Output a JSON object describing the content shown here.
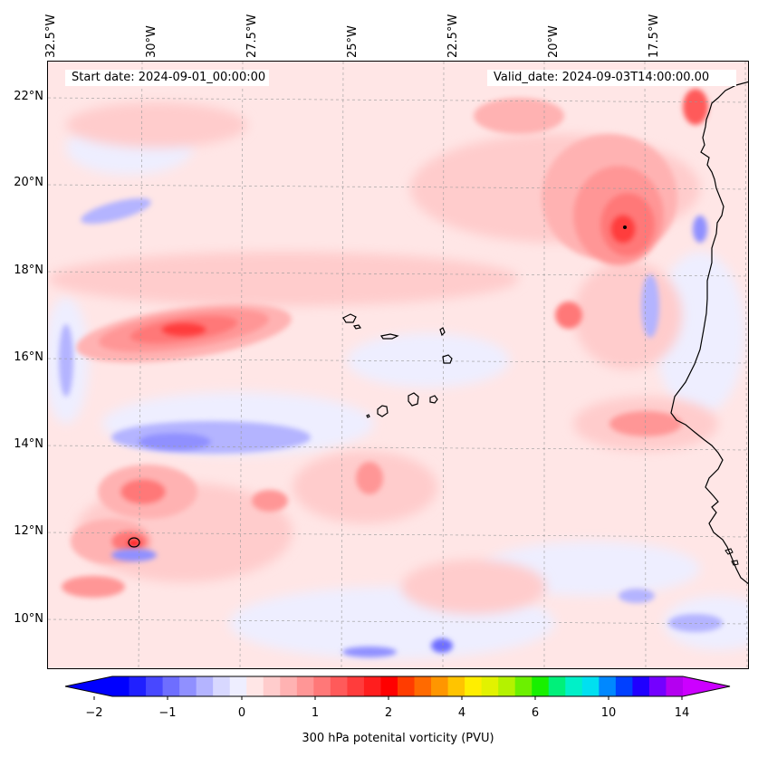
{
  "map": {
    "start_date": "Start date: 2024-09-01_00:00:00",
    "valid_date": "Valid_date: 2024-09-03T14:00:00.00",
    "longitude_labels": [
      "32.5°W",
      "30°W",
      "27.5°W",
      "25°W",
      "22.5°W",
      "20°W",
      "17.5°W"
    ],
    "latitude_labels": [
      "22°N",
      "20°N",
      "18°N",
      "16°N",
      "14°N",
      "12°N",
      "10°N"
    ],
    "extent": {
      "lon_min": -33.0,
      "lon_max": -15.8,
      "lat_min": 8.9,
      "lat_max": 22.8
    },
    "features": [
      "Cape Verde islands",
      "West African coastline"
    ],
    "gridlines": true
  },
  "colorbar": {
    "label": "300 hPa potenital vorticity (PVU)",
    "tick_labels": [
      "−2",
      "−1",
      "0",
      "1",
      "2",
      "4",
      "6",
      "10",
      "14"
    ],
    "extend": "both",
    "colors": [
      "#0000ff",
      "#2020ff",
      "#4848ff",
      "#6e6eff",
      "#9090ff",
      "#b4b4ff",
      "#d8d8ff",
      "#eeeeff",
      "#ffe6e6",
      "#ffcccc",
      "#ffb2b2",
      "#ff9696",
      "#ff7878",
      "#ff5a5a",
      "#ff3c3c",
      "#ff1e1e",
      "#ff0000",
      "#ff3c00",
      "#ff6a00",
      "#ff9600",
      "#ffc400",
      "#ffee00",
      "#e2f200",
      "#b4f200",
      "#6cf000",
      "#18f000",
      "#00f07a",
      "#00f0c8",
      "#00e0f0",
      "#0088ff",
      "#0040ff",
      "#2000ff",
      "#7400ff",
      "#b400f0"
    ],
    "over_color": "#cc00ff",
    "under_color": "#0000ff"
  }
}
